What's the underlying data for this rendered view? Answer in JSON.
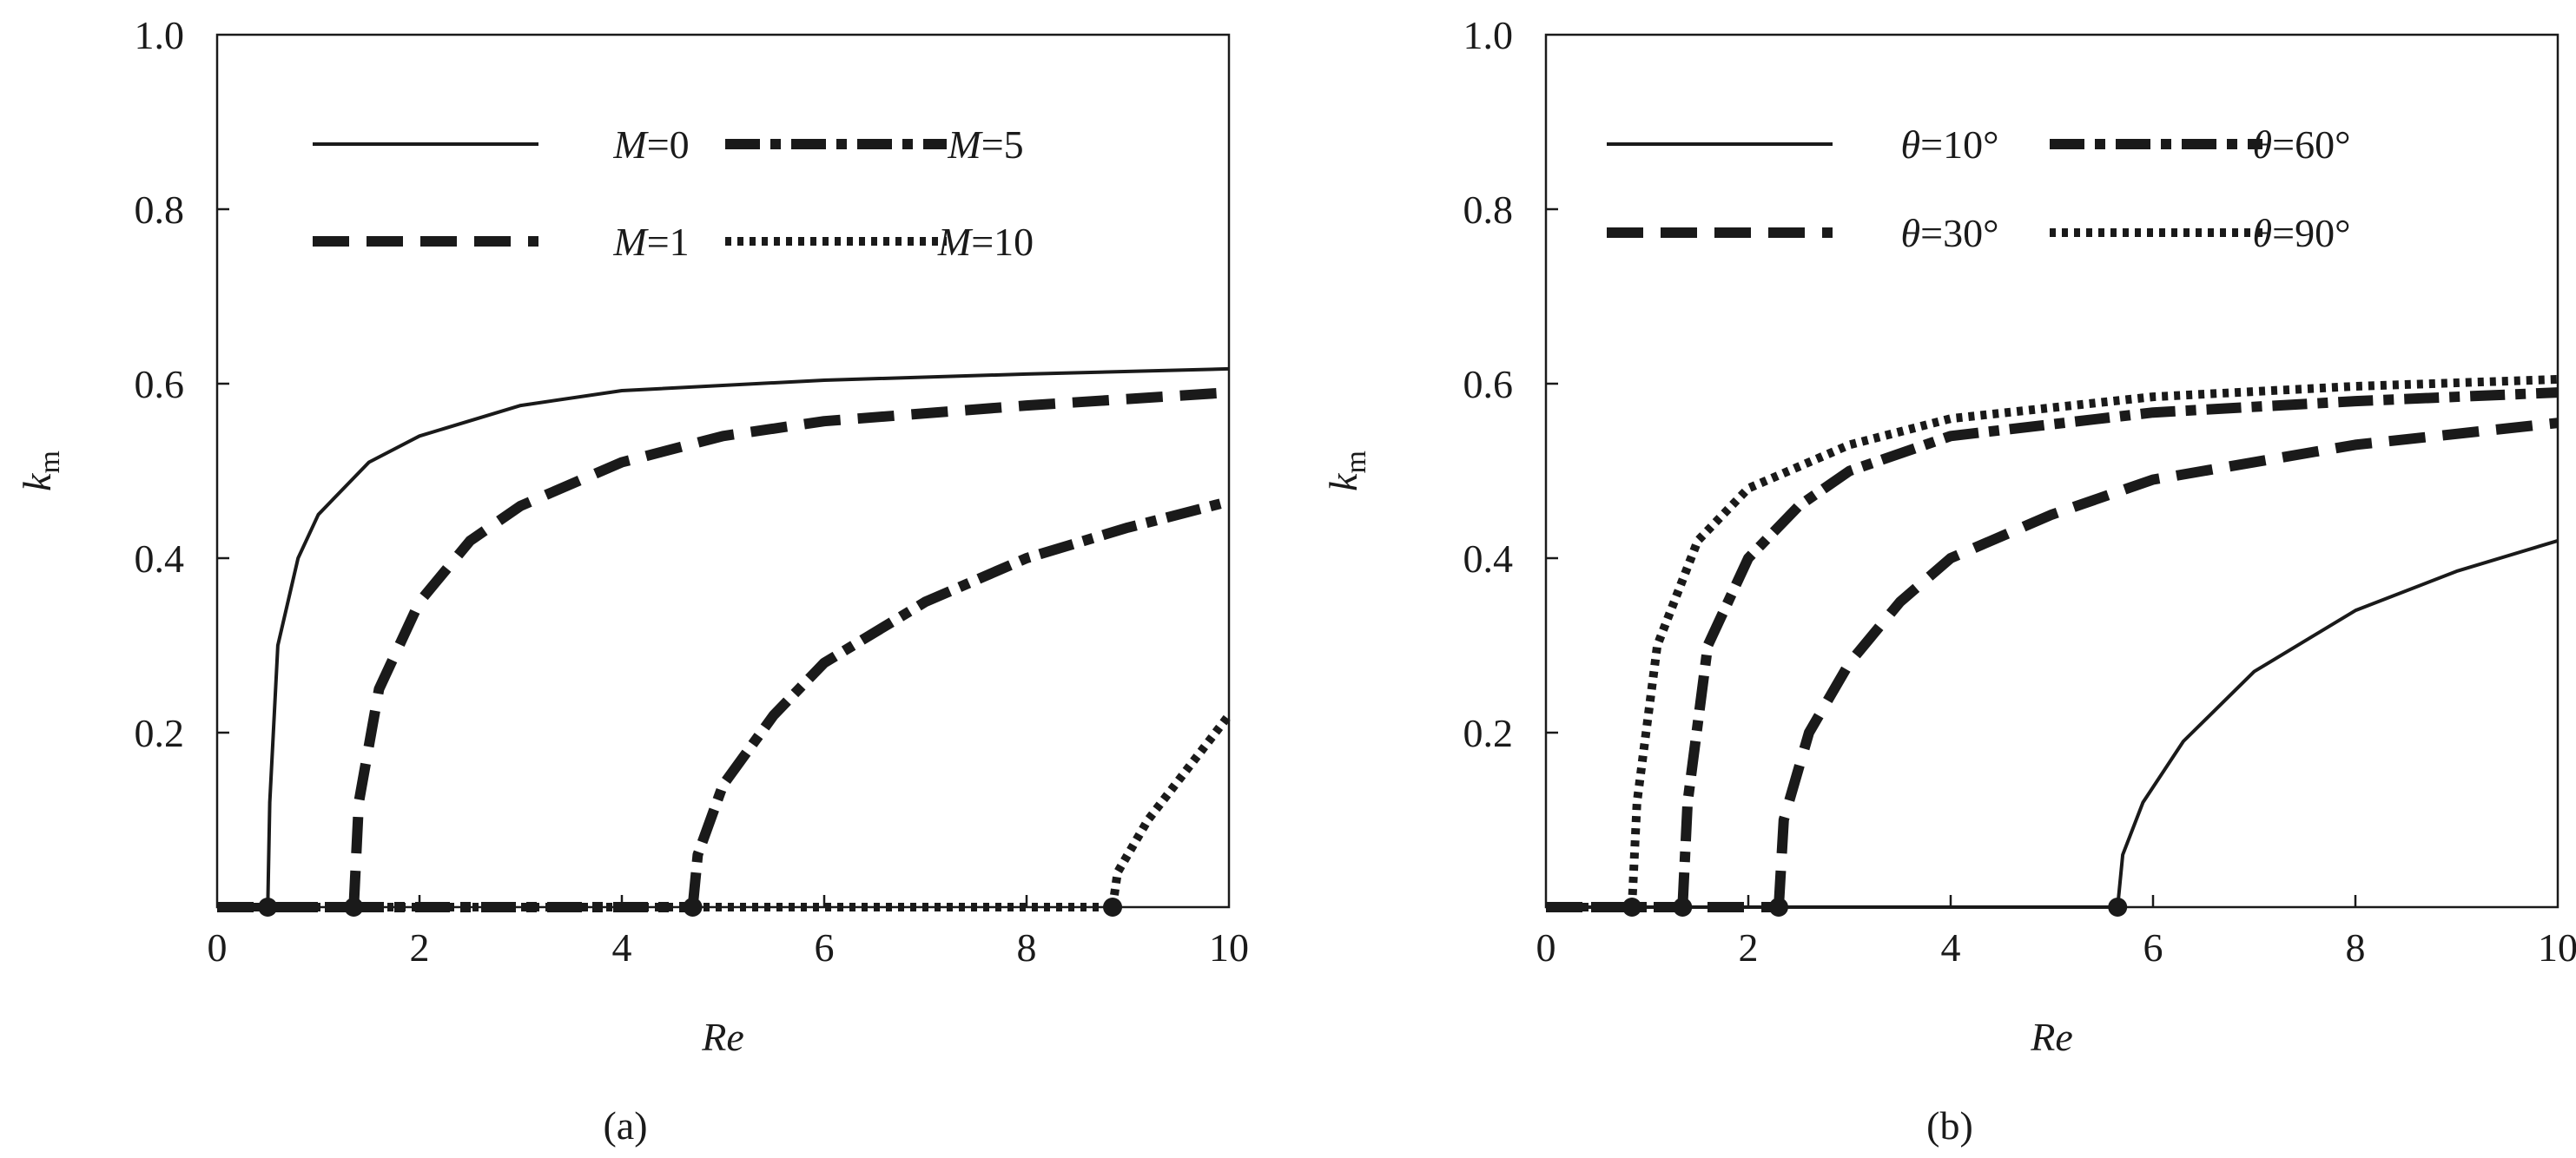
{
  "chart_data": [
    {
      "type": "line",
      "caption": "(a)",
      "xlabel": "Re",
      "ylabel_main": "k",
      "ylabel_sub": "m",
      "xlim": [
        0,
        10
      ],
      "ylim": [
        0,
        1.0
      ],
      "x_ticks": [
        "0",
        "2",
        "4",
        "6",
        "8",
        "10"
      ],
      "y_ticks": [
        "0.2",
        "0.4",
        "0.6",
        "0.8",
        "1.0"
      ],
      "grid": false,
      "legend_position": "top",
      "series": [
        {
          "name_var": "M",
          "name_rest": "=0",
          "style": "solid",
          "onset": 0.5,
          "points": [
            [
              0.5,
              0
            ],
            [
              0.52,
              0.12
            ],
            [
              0.6,
              0.3
            ],
            [
              0.8,
              0.4
            ],
            [
              1.0,
              0.45
            ],
            [
              1.5,
              0.51
            ],
            [
              2,
              0.54
            ],
            [
              3,
              0.575
            ],
            [
              4,
              0.592
            ],
            [
              6,
              0.604
            ],
            [
              8,
              0.611
            ],
            [
              10,
              0.617
            ]
          ]
        },
        {
          "name_var": "M",
          "name_rest": "=1",
          "style": "dashed",
          "onset": 1.35,
          "points": [
            [
              1.35,
              0
            ],
            [
              1.4,
              0.12
            ],
            [
              1.6,
              0.25
            ],
            [
              2,
              0.35
            ],
            [
              2.5,
              0.42
            ],
            [
              3,
              0.46
            ],
            [
              4,
              0.51
            ],
            [
              5,
              0.54
            ],
            [
              6,
              0.557
            ],
            [
              8,
              0.575
            ],
            [
              10,
              0.59
            ]
          ]
        },
        {
          "name_var": "M",
          "name_rest": "=5",
          "style": "dashdot",
          "onset": 4.7,
          "points": [
            [
              4.7,
              0
            ],
            [
              4.75,
              0.06
            ],
            [
              5,
              0.14
            ],
            [
              5.5,
              0.22
            ],
            [
              6,
              0.28
            ],
            [
              7,
              0.35
            ],
            [
              8,
              0.4
            ],
            [
              9,
              0.435
            ],
            [
              10,
              0.465
            ]
          ]
        },
        {
          "name_var": "M",
          "name_rest": "=10",
          "style": "dotted",
          "onset": 8.85,
          "points": [
            [
              8.85,
              0
            ],
            [
              8.9,
              0.04
            ],
            [
              9.2,
              0.1
            ],
            [
              9.6,
              0.16
            ],
            [
              10,
              0.22
            ]
          ]
        }
      ]
    },
    {
      "type": "line",
      "caption": "(b)",
      "xlabel": "Re",
      "ylabel_main": "k",
      "ylabel_sub": "m",
      "xlim": [
        0,
        10
      ],
      "ylim": [
        0,
        1.0
      ],
      "x_ticks": [
        "0",
        "2",
        "4",
        "6",
        "8",
        "10"
      ],
      "y_ticks": [
        "0.2",
        "0.4",
        "0.6",
        "0.8",
        "1.0"
      ],
      "grid": false,
      "legend_position": "top",
      "series": [
        {
          "name_var": "θ",
          "name_rest": "=10°",
          "style": "solid",
          "onset": 5.65,
          "points": [
            [
              5.65,
              0
            ],
            [
              5.7,
              0.06
            ],
            [
              5.9,
              0.12
            ],
            [
              6.3,
              0.19
            ],
            [
              7,
              0.27
            ],
            [
              8,
              0.34
            ],
            [
              9,
              0.385
            ],
            [
              10,
              0.42
            ]
          ]
        },
        {
          "name_var": "θ",
          "name_rest": "=30°",
          "style": "dashed",
          "onset": 2.3,
          "points": [
            [
              2.3,
              0
            ],
            [
              2.35,
              0.1
            ],
            [
              2.6,
              0.2
            ],
            [
              3,
              0.28
            ],
            [
              3.5,
              0.35
            ],
            [
              4,
              0.4
            ],
            [
              5,
              0.45
            ],
            [
              6,
              0.49
            ],
            [
              8,
              0.53
            ],
            [
              10,
              0.555
            ]
          ]
        },
        {
          "name_var": "θ",
          "name_rest": "=60°",
          "style": "dashdot",
          "onset": 1.35,
          "points": [
            [
              1.35,
              0
            ],
            [
              1.4,
              0.12
            ],
            [
              1.6,
              0.3
            ],
            [
              2,
              0.4
            ],
            [
              2.5,
              0.46
            ],
            [
              3,
              0.5
            ],
            [
              4,
              0.54
            ],
            [
              6,
              0.567
            ],
            [
              8,
              0.58
            ],
            [
              10,
              0.59
            ]
          ]
        },
        {
          "name_var": "θ",
          "name_rest": "=90°",
          "style": "dotted",
          "onset": 0.85,
          "points": [
            [
              0.85,
              0
            ],
            [
              0.9,
              0.12
            ],
            [
              1.1,
              0.3
            ],
            [
              1.5,
              0.42
            ],
            [
              2,
              0.48
            ],
            [
              3,
              0.53
            ],
            [
              4,
              0.56
            ],
            [
              6,
              0.585
            ],
            [
              8,
              0.597
            ],
            [
              10,
              0.605
            ]
          ]
        }
      ]
    }
  ]
}
